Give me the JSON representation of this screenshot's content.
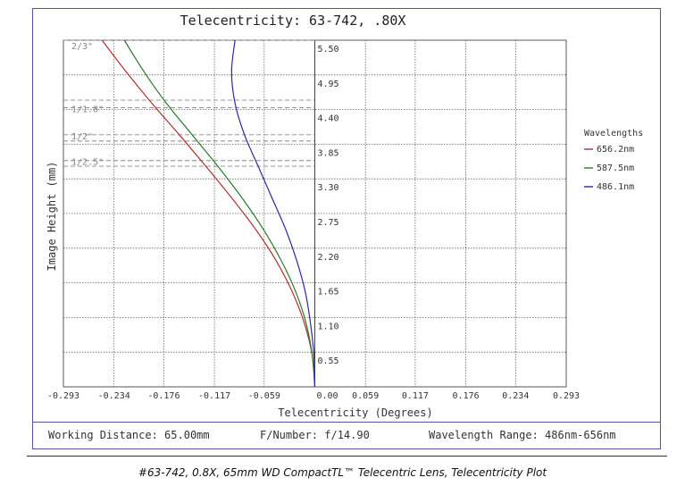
{
  "chart_data": {
    "type": "line",
    "title": "Telecentricity: 63-742, .80X",
    "xlabel": "Telecentricity (Degrees)",
    "ylabel": "Image Height (mm)",
    "xlim": [
      -0.293,
      0.293
    ],
    "ylim": [
      0,
      5.5
    ],
    "x_ticks": [
      "-0.293",
      "-0.234",
      "-0.176",
      "-0.117",
      "-0.059",
      "0.00",
      "0.059",
      "0.117",
      "0.176",
      "0.234",
      "0.293"
    ],
    "x_tick_values": [
      -0.293,
      -0.234,
      -0.176,
      -0.117,
      -0.059,
      0.0,
      0.059,
      0.117,
      0.176,
      0.234,
      0.293
    ],
    "y_ticks": [
      "0.55",
      "1.10",
      "1.65",
      "2.20",
      "2.75",
      "3.30",
      "3.85",
      "4.40",
      "4.95",
      "5.50"
    ],
    "y_tick_values": [
      0.55,
      1.1,
      1.65,
      2.2,
      2.75,
      3.3,
      3.85,
      4.4,
      4.95,
      5.5
    ],
    "grid": true,
    "sensor_markers": [
      {
        "label": "2/3\"",
        "y": 5.5
      },
      {
        "label": "1/1.8\"",
        "y": 4.43
      },
      {
        "label": "1/2\"",
        "y": 4.0
      },
      {
        "label": "1/2.5\"",
        "y": 3.59
      }
    ],
    "sensor_marker_extra_lines": [
      4.55,
      3.9,
      3.5
    ],
    "legend": {
      "title": "Wavelengths",
      "position": "right"
    },
    "series": [
      {
        "name": "656.2nm",
        "color": "#b03030",
        "x": [
          0.0,
          -0.003,
          -0.012,
          -0.026,
          -0.045,
          -0.069,
          -0.097,
          -0.127,
          -0.158,
          -0.19,
          -0.22,
          -0.248
        ],
        "y": [
          0.0,
          0.5,
          1.0,
          1.5,
          2.0,
          2.5,
          3.0,
          3.5,
          4.0,
          4.5,
          5.0,
          5.5
        ]
      },
      {
        "name": "587.5nm",
        "color": "#2a7a2a",
        "x": [
          0.0,
          -0.003,
          -0.01,
          -0.022,
          -0.039,
          -0.06,
          -0.085,
          -0.113,
          -0.143,
          -0.173,
          -0.199,
          -0.222
        ],
        "y": [
          0.0,
          0.5,
          1.0,
          1.5,
          2.0,
          2.5,
          3.0,
          3.5,
          4.0,
          4.5,
          5.0,
          5.5
        ]
      },
      {
        "name": "486.1nm",
        "color": "#2a2aa0",
        "x": [
          0.0,
          -0.001,
          -0.005,
          -0.011,
          -0.021,
          -0.034,
          -0.05,
          -0.066,
          -0.082,
          -0.093,
          -0.097,
          -0.093
        ],
        "y": [
          0.0,
          0.5,
          1.0,
          1.5,
          2.0,
          2.5,
          3.0,
          3.5,
          4.0,
          4.5,
          5.0,
          5.5
        ]
      }
    ]
  },
  "footer": {
    "working_distance": "Working Distance: 65.00mm",
    "f_number": "F/Number: f/14.90",
    "wavelength_range": "Wavelength Range: 486nm-656nm"
  },
  "caption": "#63-742, 0.8X, 65mm WD CompactTL™ Telecentric Lens, Telecentricity Plot"
}
